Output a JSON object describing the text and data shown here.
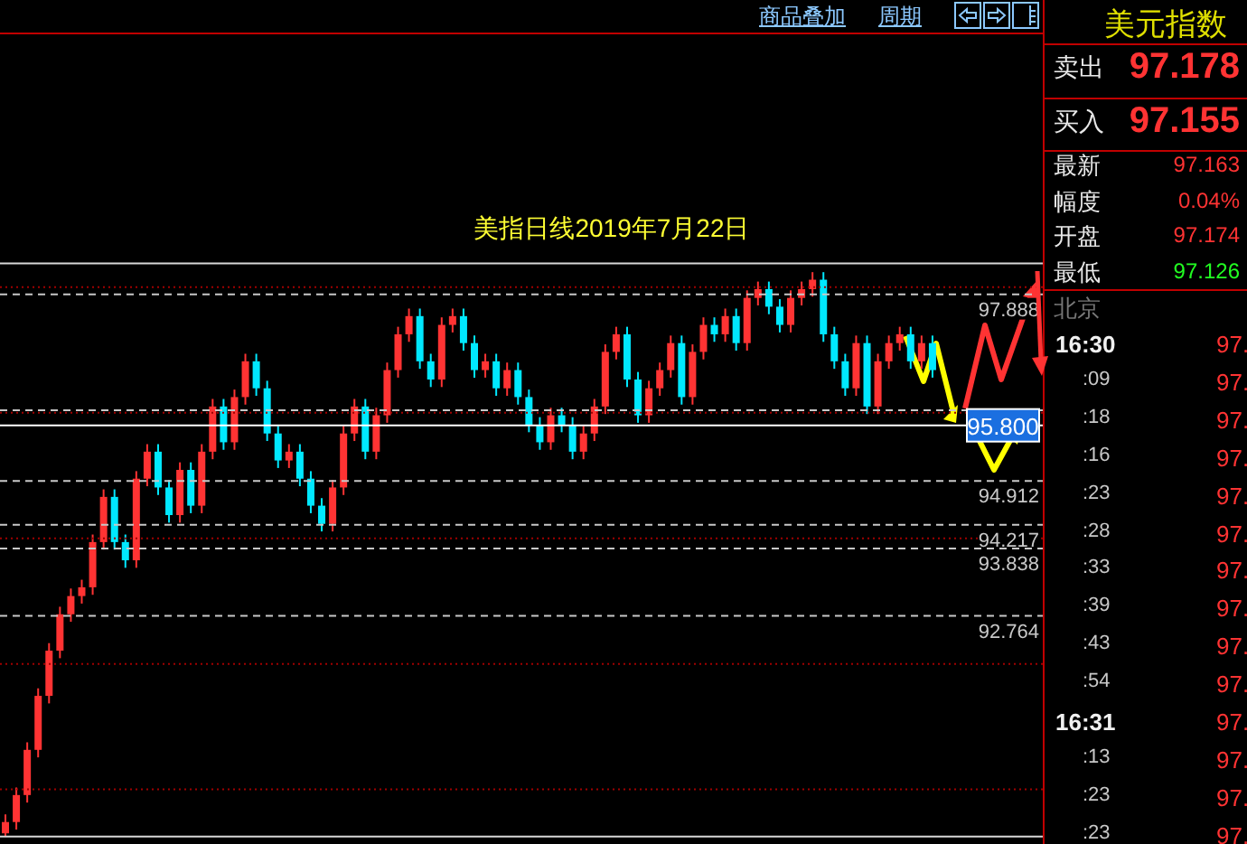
{
  "chart_data": [
    {
      "type": "candlestick",
      "title": "美指日线2019年7月22日",
      "annotations": [
        "商品叠加",
        "周期"
      ],
      "categories": [
        null,
        null,
        null,
        null,
        null,
        null,
        null,
        null,
        null,
        null,
        null,
        null,
        null,
        null,
        null,
        null,
        null,
        null,
        null,
        null,
        null,
        null,
        null,
        null,
        null,
        null,
        null,
        null,
        null,
        null,
        null,
        null,
        null,
        null,
        null,
        null,
        null,
        null,
        null,
        null,
        null,
        null,
        null,
        null,
        null,
        null,
        null,
        null,
        null,
        null,
        null,
        null,
        null,
        null,
        null,
        null,
        null,
        null,
        null,
        null,
        null,
        null,
        null,
        null,
        null,
        null,
        null,
        null,
        null,
        null,
        null,
        null,
        null,
        null,
        null,
        null,
        null,
        null,
        null,
        null,
        null,
        null,
        null,
        null,
        null,
        null
      ],
      "colors": [
        "#ff3333",
        "#ff3333",
        "#ff3333",
        "#ff3333",
        "#ff3333",
        "#ff3333",
        "#ff3333",
        "#ff3333",
        "#ff3333",
        "#ff3333",
        "#00e8ff",
        "#00e8ff",
        "#ff3333",
        "#ff3333",
        "#00e8ff",
        "#00e8ff",
        "#ff3333",
        "#00e8ff",
        "#ff3333",
        "#ff3333",
        "#00e8ff",
        "#ff3333",
        "#ff3333",
        "#00e8ff",
        "#00e8ff",
        "#00e8ff",
        "#ff3333",
        "#00e8ff",
        "#00e8ff",
        "#00e8ff",
        "#ff3333",
        "#ff3333",
        "#ff3333",
        "#00e8ff",
        "#ff3333",
        "#ff3333",
        "#ff3333",
        "#ff3333",
        "#00e8ff",
        "#00e8ff",
        "#ff3333",
        "#ff3333",
        "#00e8ff",
        "#00e8ff",
        "#ff3333",
        "#00e8ff",
        "#ff3333",
        "#00e8ff",
        "#00e8ff",
        "#00e8ff",
        "#ff3333",
        "#00e8ff",
        "#00e8ff",
        "#ff3333",
        "#ff3333",
        "#ff3333",
        "#ff3333",
        "#00e8ff",
        "#00e8ff",
        "#ff3333",
        "#ff3333",
        "#ff3333",
        "#00e8ff",
        "#ff3333",
        "#ff3333",
        "#00e8ff",
        "#ff3333",
        "#00e8ff",
        "#ff3333",
        "#ff3333",
        "#00e8ff",
        "#00e8ff",
        "#ff3333",
        "#ff3333",
        "#ff3333",
        "#00e8ff",
        "#00e8ff",
        "#00e8ff",
        "#ff3333",
        "#00e8ff",
        "#ff3333",
        "#ff3333",
        "#ff3333",
        "#00e8ff",
        "#ff3333",
        "#00e8ff"
      ],
      "ohlc": [
        [
          89.3,
          89.6,
          89.25,
          89.48
        ],
        [
          89.48,
          90.03,
          89.36,
          89.91
        ],
        [
          89.91,
          90.75,
          89.79,
          90.63
        ],
        [
          90.63,
          91.61,
          90.51,
          91.49
        ],
        [
          91.49,
          92.33,
          91.37,
          92.21
        ],
        [
          92.21,
          92.91,
          92.09,
          92.79
        ],
        [
          92.79,
          93.2,
          92.67,
          93.08
        ],
        [
          93.08,
          93.34,
          92.96,
          93.22
        ],
        [
          93.22,
          94.06,
          93.1,
          93.94
        ],
        [
          93.94,
          94.78,
          93.82,
          94.66
        ],
        [
          94.66,
          94.78,
          93.82,
          93.94
        ],
        [
          93.94,
          94.06,
          93.53,
          93.65
        ],
        [
          93.65,
          95.07,
          93.53,
          94.95
        ],
        [
          94.95,
          95.5,
          94.83,
          95.38
        ],
        [
          95.38,
          95.5,
          94.69,
          94.81
        ],
        [
          94.81,
          94.93,
          94.25,
          94.37
        ],
        [
          94.37,
          95.21,
          94.25,
          95.09
        ],
        [
          95.09,
          95.21,
          94.4,
          94.52
        ],
        [
          94.52,
          95.5,
          94.4,
          95.38
        ],
        [
          95.38,
          96.22,
          95.26,
          96.1
        ],
        [
          96.1,
          96.22,
          95.41,
          95.53
        ],
        [
          95.53,
          96.37,
          95.41,
          96.25
        ],
        [
          96.25,
          96.94,
          96.13,
          96.82
        ],
        [
          96.82,
          96.94,
          96.27,
          96.39
        ],
        [
          96.39,
          96.51,
          95.55,
          95.67
        ],
        [
          95.67,
          95.79,
          95.12,
          95.24
        ],
        [
          95.24,
          95.5,
          95.12,
          95.38
        ],
        [
          95.38,
          95.5,
          94.83,
          94.95
        ],
        [
          94.95,
          95.07,
          94.4,
          94.52
        ],
        [
          94.52,
          94.64,
          94.11,
          94.23
        ],
        [
          94.23,
          94.93,
          94.11,
          94.81
        ],
        [
          94.81,
          95.79,
          94.69,
          95.67
        ],
        [
          95.67,
          96.22,
          95.55,
          96.1
        ],
        [
          96.1,
          96.22,
          95.26,
          95.38
        ],
        [
          95.38,
          96.08,
          95.26,
          95.96
        ],
        [
          95.96,
          96.8,
          95.84,
          96.68
        ],
        [
          96.68,
          97.37,
          96.56,
          97.25
        ],
        [
          97.25,
          97.66,
          97.13,
          97.54
        ],
        [
          97.54,
          97.66,
          96.7,
          96.82
        ],
        [
          96.82,
          96.94,
          96.41,
          96.53
        ],
        [
          96.53,
          97.52,
          96.41,
          97.4
        ],
        [
          97.4,
          97.66,
          97.28,
          97.54
        ],
        [
          97.54,
          97.66,
          96.99,
          97.11
        ],
        [
          97.11,
          97.23,
          96.56,
          96.68
        ],
        [
          96.68,
          96.94,
          96.56,
          96.82
        ],
        [
          96.82,
          96.94,
          96.27,
          96.39
        ],
        [
          96.39,
          96.8,
          96.27,
          96.68
        ],
        [
          96.68,
          96.8,
          96.13,
          96.25
        ],
        [
          96.25,
          96.37,
          95.69,
          95.81
        ],
        [
          95.81,
          95.93,
          95.41,
          95.53
        ],
        [
          95.53,
          96.08,
          95.41,
          95.96
        ],
        [
          95.96,
          96.08,
          95.69,
          95.81
        ],
        [
          95.81,
          95.93,
          95.26,
          95.38
        ],
        [
          95.38,
          95.79,
          95.26,
          95.67
        ],
        [
          95.67,
          96.22,
          95.55,
          96.1
        ],
        [
          96.1,
          97.09,
          95.98,
          96.97
        ],
        [
          96.97,
          97.37,
          96.85,
          97.25
        ],
        [
          97.25,
          97.37,
          96.41,
          96.53
        ],
        [
          96.53,
          96.65,
          95.84,
          95.96
        ],
        [
          95.96,
          96.51,
          95.84,
          96.39
        ],
        [
          96.39,
          96.8,
          96.27,
          96.68
        ],
        [
          96.68,
          97.23,
          96.56,
          97.11
        ],
        [
          97.11,
          97.23,
          96.13,
          96.25
        ],
        [
          96.25,
          97.09,
          96.13,
          96.97
        ],
        [
          96.97,
          97.52,
          96.85,
          97.4
        ],
        [
          97.4,
          97.52,
          97.13,
          97.25
        ],
        [
          97.25,
          97.66,
          97.13,
          97.54
        ],
        [
          97.54,
          97.66,
          96.99,
          97.11
        ],
        [
          97.11,
          97.95,
          96.99,
          97.83
        ],
        [
          97.83,
          98.09,
          97.71,
          97.97
        ],
        [
          97.97,
          98.09,
          97.57,
          97.69
        ],
        [
          97.69,
          97.81,
          97.28,
          97.4
        ],
        [
          97.4,
          97.95,
          97.28,
          97.83
        ],
        [
          97.83,
          98.09,
          97.71,
          97.97
        ],
        [
          97.97,
          98.24,
          97.85,
          98.12
        ],
        [
          98.12,
          98.24,
          97.13,
          97.25
        ],
        [
          97.25,
          97.37,
          96.7,
          96.82
        ],
        [
          96.82,
          96.94,
          96.27,
          96.39
        ],
        [
          96.39,
          97.23,
          96.27,
          97.11
        ],
        [
          97.11,
          97.23,
          95.98,
          96.1
        ],
        [
          96.1,
          96.94,
          95.98,
          96.82
        ],
        [
          96.82,
          97.23,
          96.7,
          97.11
        ],
        [
          97.11,
          97.37,
          96.99,
          97.25
        ],
        [
          97.25,
          97.37,
          96.7,
          96.82
        ],
        [
          96.82,
          97.23,
          96.7,
          97.11
        ],
        [
          97.11,
          97.23,
          96.56,
          96.68
        ]
      ],
      "ylim": [
        89.13,
        102.0
      ],
      "yticks": [
        {
          "value": 90,
          "label": null
        },
        {
          "value": 92,
          "label": null
        },
        {
          "value": 94,
          "label": null
        },
        {
          "value": 96,
          "label": null
        },
        {
          "value": 98,
          "label": null
        }
      ],
      "grid": "y",
      "tick_labels": false,
      "ref_lines": [
        {
          "axis": "y",
          "value": 98.38,
          "color": "#d8d8d8",
          "line_style": "solid"
        },
        {
          "axis": "y",
          "value": 97.888,
          "label": "97.888",
          "color": "#c8c8c8",
          "line_style": "dashed"
        },
        {
          "axis": "y",
          "value": 96.04,
          "color": "#c8c8c8",
          "line_style": "dashed"
        },
        {
          "axis": "y",
          "value": 95.8,
          "label": "95.800",
          "color": "#ffffff",
          "line_style": "solid"
        },
        {
          "axis": "y",
          "value": 94.912,
          "label": "94.912",
          "color": "#c8c8c8",
          "line_style": "dashed"
        },
        {
          "axis": "y",
          "value": 94.217,
          "label": "94.217",
          "color": "#c8c8c8",
          "line_style": "dashed"
        },
        {
          "axis": "y",
          "value": 93.838,
          "label": "93.838",
          "color": "#c8c8c8",
          "line_style": "dashed"
        },
        {
          "axis": "y",
          "value": 92.764,
          "label": "92.764",
          "color": "#c8c8c8",
          "line_style": "dashed"
        },
        {
          "axis": "y",
          "value": 89.25,
          "color": "#d8d8d8",
          "line_style": "solid"
        }
      ]
    },
    {
      "type": "other",
      "title": "美元指数",
      "annotations": [
        "卖出",
        "97.178",
        "买入",
        "97.155",
        "最新",
        "97.163",
        "幅度",
        "0.04%",
        "开盘",
        "97.174",
        "最低",
        "97.126",
        "北京",
        "16:30",
        "97.",
        ":09",
        "97.",
        ":18",
        "97.",
        ":16",
        "97.",
        ":23",
        "97.",
        ":28",
        "97.",
        ":33",
        "97.",
        ":39",
        "97.",
        ":43",
        "97.",
        ":54",
        "97.",
        "16:31",
        "97.",
        ":13",
        "97.",
        ":23",
        "97.",
        ":23",
        "97."
      ]
    }
  ]
}
